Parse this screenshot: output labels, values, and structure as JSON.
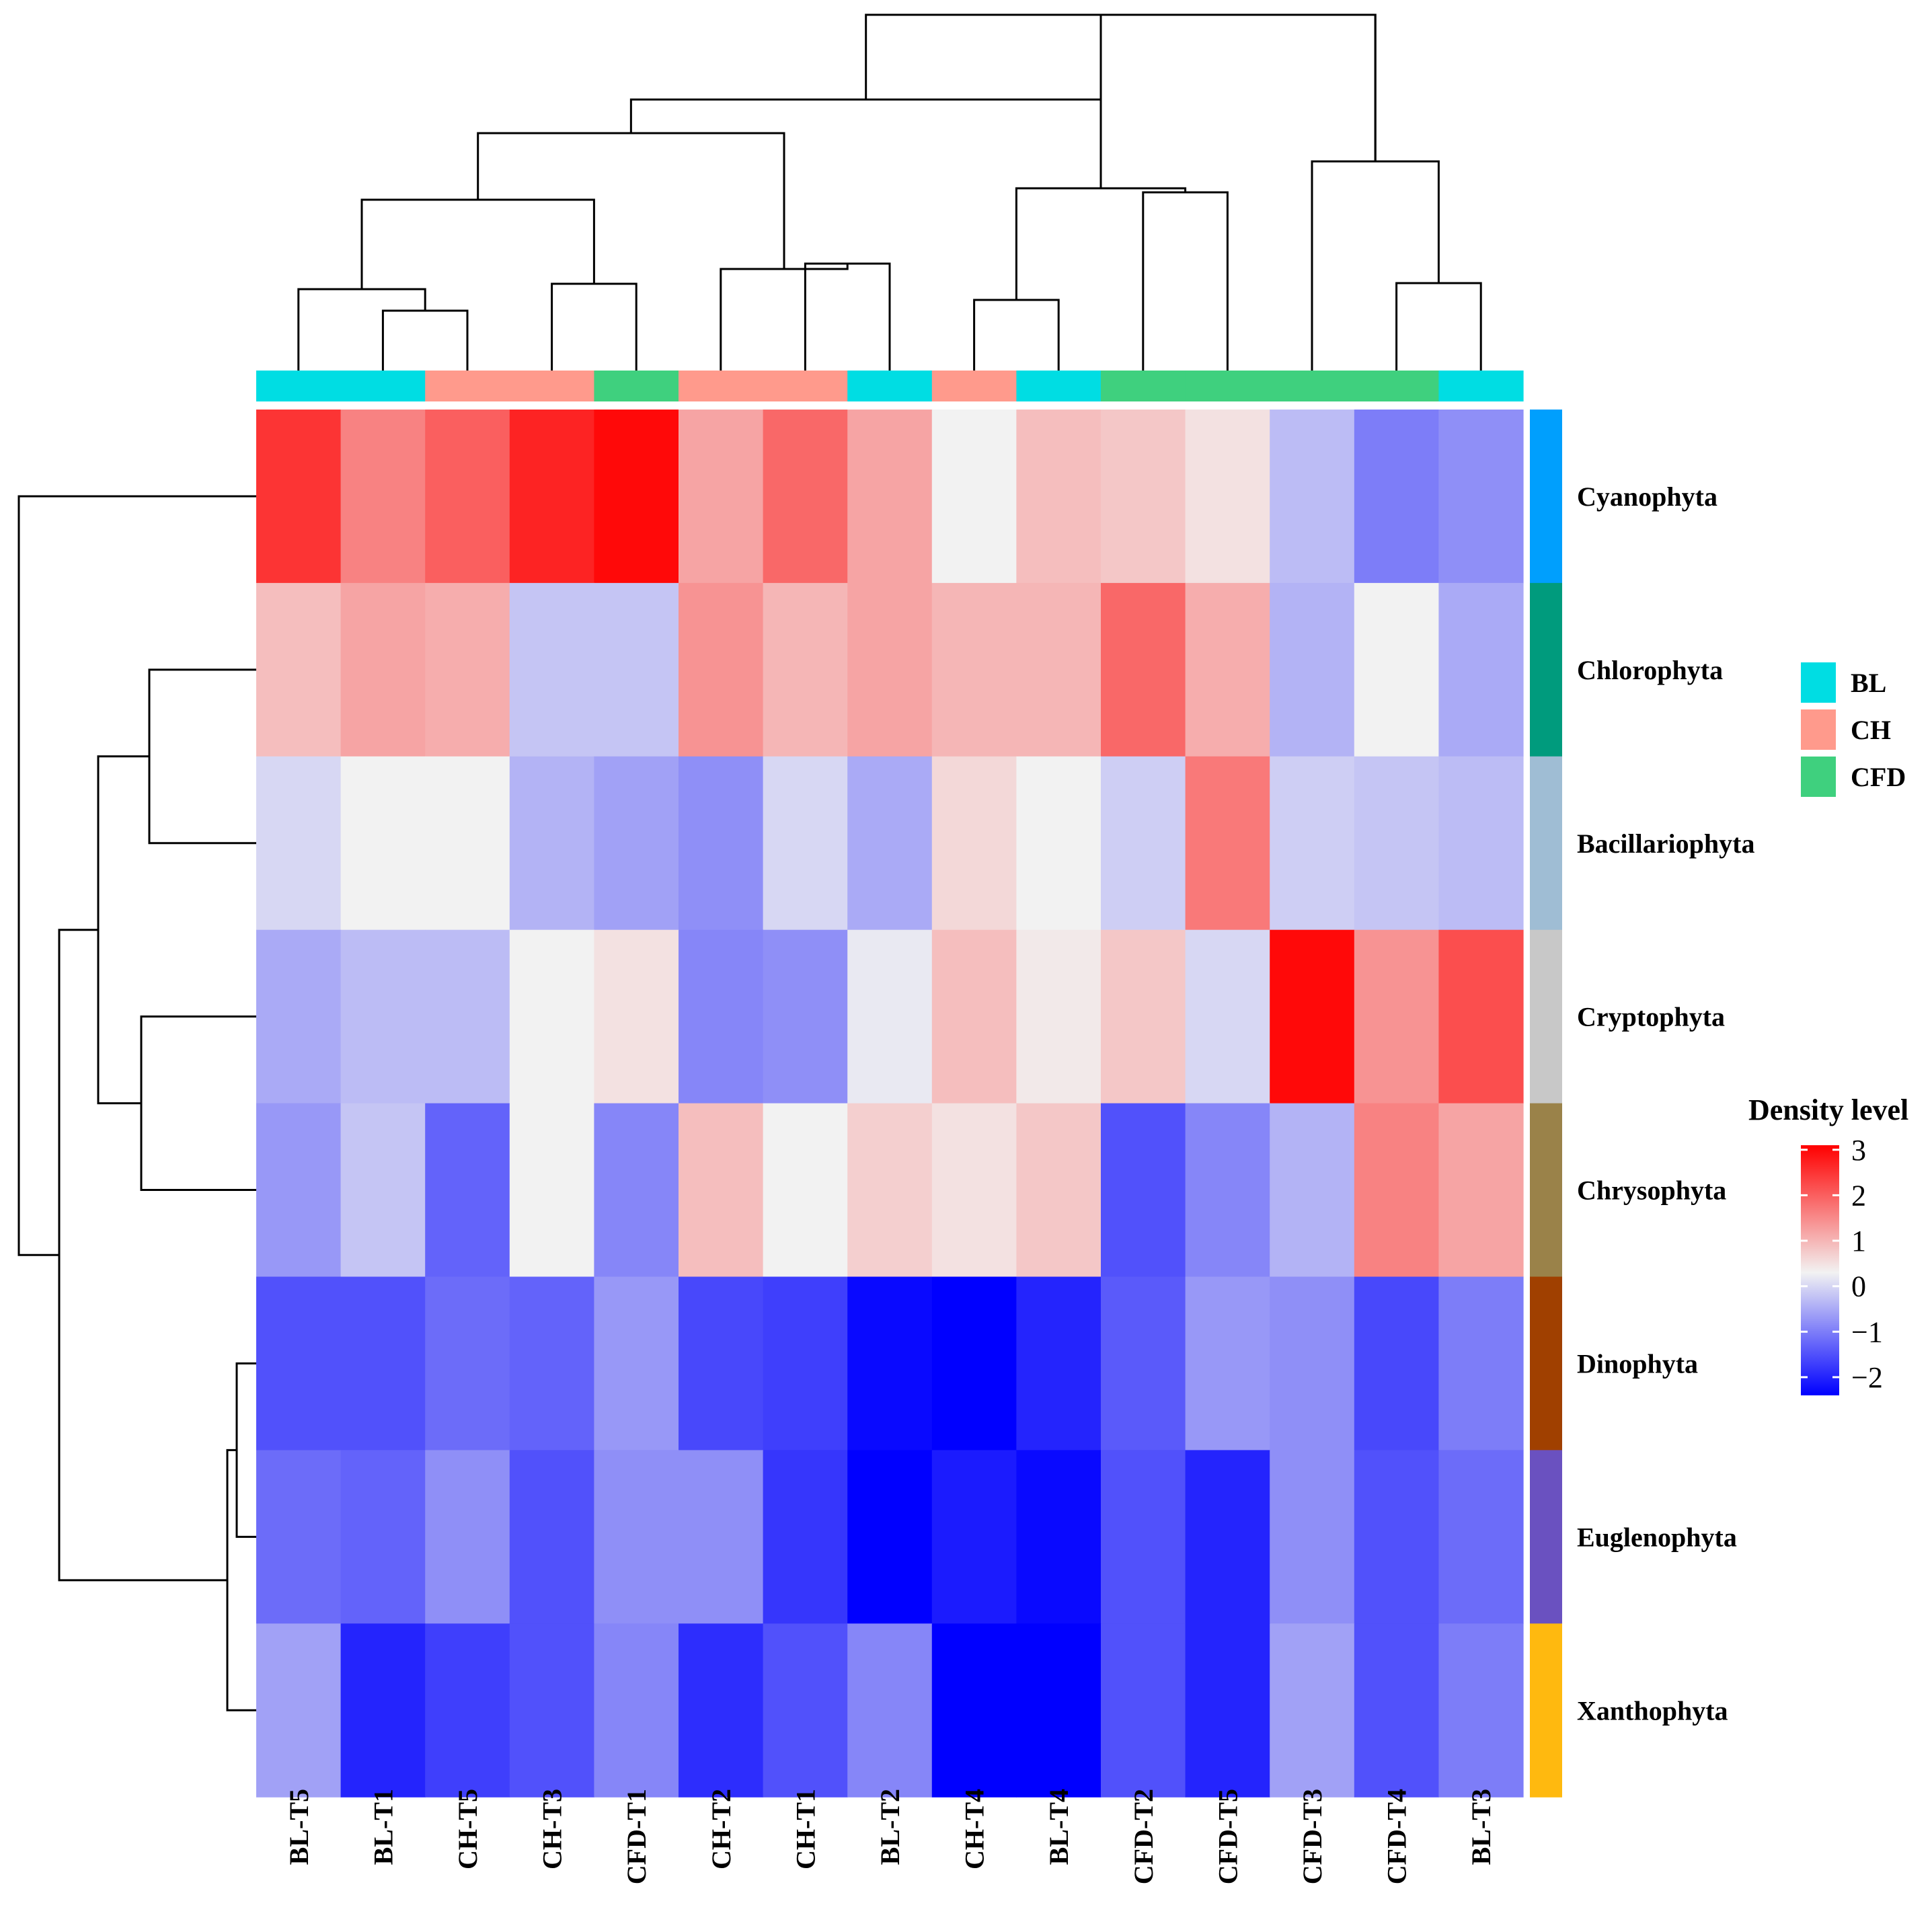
{
  "chart_data": {
    "type": "heatmap",
    "title": "",
    "columns": [
      "BL-T5",
      "BL-T1",
      "CH-T5",
      "CH-T3",
      "CFD-T1",
      "CH-T2",
      "CH-T1",
      "BL-T2",
      "CH-T4",
      "BL-T4",
      "CFD-T2",
      "CFD-T5",
      "CFD-T3",
      "CFD-T4",
      "BL-T3"
    ],
    "column_groups": [
      "BL",
      "BL",
      "CH",
      "CH",
      "CFD",
      "CH",
      "CH",
      "BL",
      "CH",
      "BL",
      "CFD",
      "CFD",
      "CFD",
      "CFD",
      "BL"
    ],
    "rows": [
      "Cyanophyta",
      "Chlorophyta",
      "Bacillariophyta",
      "Cryptophyta",
      "Chrysophyta",
      "Dinophyta",
      "Euglenophyta",
      "Xanthophyta"
    ],
    "row_colors": [
      "#009FFD",
      "#009B7D",
      "#9FBDD4",
      "#C8C8C8",
      "#9A8249",
      "#A04000",
      "#6A51C0",
      "#FFB90F"
    ],
    "values": [
      [
        2.5,
        1.6,
        2.0,
        2.7,
        3.0,
        1.2,
        1.9,
        1.2,
        0.3,
        0.9,
        0.8,
        0.5,
        -0.3,
        -1.0,
        -0.8
      ],
      [
        0.9,
        1.2,
        1.1,
        -0.2,
        -0.2,
        1.4,
        1.0,
        1.2,
        1.0,
        1.0,
        1.9,
        1.1,
        -0.4,
        0.3,
        -0.5
      ],
      [
        0.0,
        0.3,
        0.3,
        -0.4,
        -0.6,
        -0.8,
        0.0,
        -0.5,
        0.6,
        0.3,
        -0.1,
        1.7,
        -0.1,
        -0.2,
        -0.3
      ],
      [
        -0.5,
        -0.3,
        -0.3,
        0.3,
        0.5,
        -0.9,
        -0.8,
        0.2,
        0.9,
        0.4,
        0.8,
        0.0,
        3.0,
        1.4,
        2.2
      ],
      [
        -0.7,
        -0.2,
        -1.3,
        0.3,
        -0.9,
        0.9,
        0.3,
        0.7,
        0.5,
        0.8,
        -1.5,
        -0.9,
        -0.4,
        1.6,
        1.2
      ],
      [
        -1.5,
        -1.5,
        -1.2,
        -1.3,
        -0.7,
        -1.6,
        -1.7,
        -2.3,
        -2.4,
        -2.0,
        -1.4,
        -0.7,
        -0.8,
        -1.6,
        -1.0
      ],
      [
        -1.2,
        -1.3,
        -0.8,
        -1.5,
        -0.8,
        -0.8,
        -1.8,
        -2.4,
        -2.1,
        -2.3,
        -1.5,
        -2.0,
        -0.8,
        -1.5,
        -1.2
      ],
      [
        -0.6,
        -2.0,
        -1.7,
        -1.5,
        -0.9,
        -1.9,
        -1.5,
        -0.9,
        -2.4,
        -2.4,
        -1.5,
        -2.0,
        -0.6,
        -1.5,
        -1.0
      ]
    ],
    "value_range": [
      -2.4,
      3.1
    ],
    "legend_groups": [
      {
        "label": "BL",
        "color": "#00DDE3"
      },
      {
        "label": "CH",
        "color": "#FF9A8C"
      },
      {
        "label": "CFD",
        "color": "#3FD07E"
      }
    ],
    "colorbar": {
      "title": "Density level",
      "ticks": [
        "3",
        "2",
        "1",
        "0",
        "−1",
        "−2"
      ],
      "tick_values": [
        3,
        2,
        1,
        0,
        -1,
        -2
      ],
      "colors": {
        "low": "#0000FF",
        "mid": "#F2F2F2",
        "high": "#FF0000"
      }
    }
  }
}
